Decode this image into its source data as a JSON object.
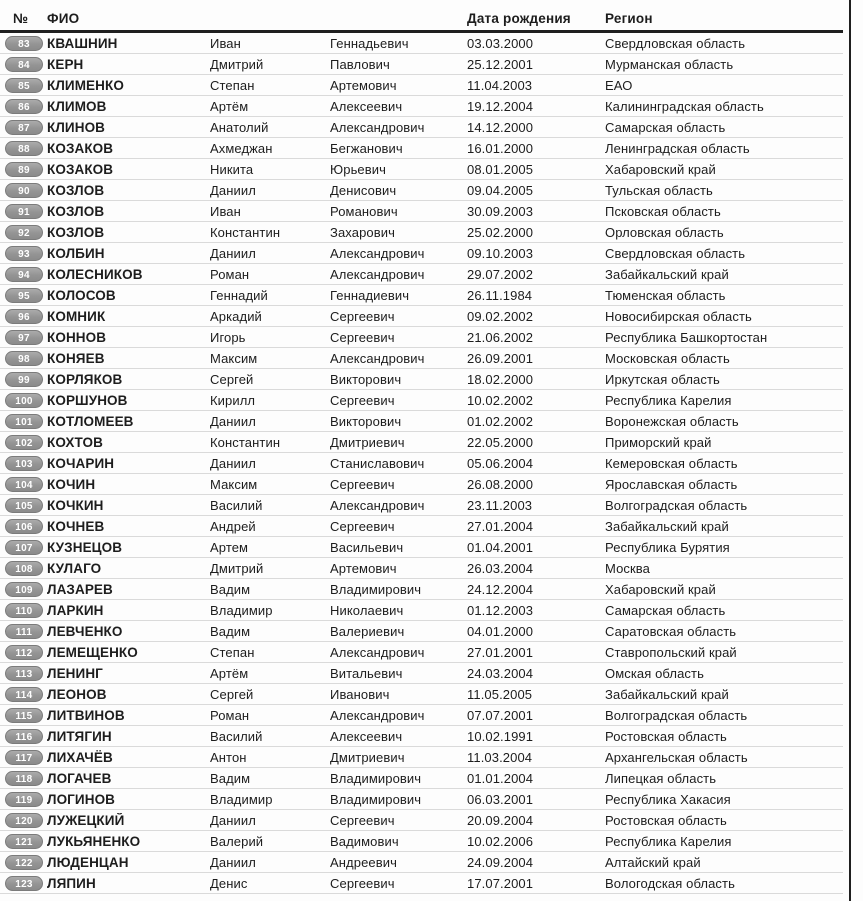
{
  "colors": {
    "page_bg": "#fdfdfd",
    "text": "#1d1d1d",
    "header_rule": "#1f1f1f",
    "row_divider": "#dadada",
    "badge_bg": "#949494",
    "badge_border": "#7b7b7b",
    "badge_text": "#ffffff"
  },
  "table": {
    "headers": {
      "num": "№",
      "fio": "ФИО",
      "dob": "Дата рождения",
      "region": "Регион"
    },
    "rows": [
      {
        "num": "83",
        "surname": "КВАШНИН",
        "first_name": "Иван",
        "patronymic": "Геннадьевич",
        "dob": "03.03.2000",
        "region": "Свердловская область"
      },
      {
        "num": "84",
        "surname": "КЕРН",
        "first_name": "Дмитрий",
        "patronymic": "Павлович",
        "dob": "25.12.2001",
        "region": "Мурманская область"
      },
      {
        "num": "85",
        "surname": "КЛИМЕНКО",
        "first_name": "Степан",
        "patronymic": "Артемович",
        "dob": "11.04.2003",
        "region": "ЕАО"
      },
      {
        "num": "86",
        "surname": "КЛИМОВ",
        "first_name": "Артём",
        "patronymic": "Алексеевич",
        "dob": "19.12.2004",
        "region": "Калининградская область"
      },
      {
        "num": "87",
        "surname": "КЛИНОВ",
        "first_name": "Анатолий",
        "patronymic": "Александрович",
        "dob": "14.12.2000",
        "region": "Самарская область"
      },
      {
        "num": "88",
        "surname": "КОЗАКОВ",
        "first_name": "Ахмеджан",
        "patronymic": "Бегжанович",
        "dob": "16.01.2000",
        "region": "Ленинградская область"
      },
      {
        "num": "89",
        "surname": "КОЗАКОВ",
        "first_name": "Никита",
        "patronymic": "Юрьевич",
        "dob": "08.01.2005",
        "region": "Хабаровский край"
      },
      {
        "num": "90",
        "surname": "КОЗЛОВ",
        "first_name": "Даниил",
        "patronymic": "Денисович",
        "dob": "09.04.2005",
        "region": "Тульская область"
      },
      {
        "num": "91",
        "surname": "КОЗЛОВ",
        "first_name": "Иван",
        "patronymic": "Романович",
        "dob": "30.09.2003",
        "region": "Псковская область"
      },
      {
        "num": "92",
        "surname": "КОЗЛОВ",
        "first_name": "Константин",
        "patronymic": "Захарович",
        "dob": "25.02.2000",
        "region": "Орловская область"
      },
      {
        "num": "93",
        "surname": "КОЛБИН",
        "first_name": "Даниил",
        "patronymic": "Александрович",
        "dob": "09.10.2003",
        "region": "Свердловская область"
      },
      {
        "num": "94",
        "surname": "КОЛЕСНИКОВ",
        "first_name": "Роман",
        "patronymic": "Александрович",
        "dob": "29.07.2002",
        "region": "Забайкальский край"
      },
      {
        "num": "95",
        "surname": "КОЛОСОВ",
        "first_name": "Геннадий",
        "patronymic": "Геннадиевич",
        "dob": "26.11.1984",
        "region": "Тюменская область"
      },
      {
        "num": "96",
        "surname": "КОМНИК",
        "first_name": "Аркадий",
        "patronymic": "Сергеевич",
        "dob": "09.02.2002",
        "region": "Новосибирская область"
      },
      {
        "num": "97",
        "surname": "КОННОВ",
        "first_name": "Игорь",
        "patronymic": "Сергеевич",
        "dob": "21.06.2002",
        "region": "Республика Башкортостан"
      },
      {
        "num": "98",
        "surname": "КОНЯЕВ",
        "first_name": "Максим",
        "patronymic": "Александрович",
        "dob": "26.09.2001",
        "region": "Московская область"
      },
      {
        "num": "99",
        "surname": "КОРЛЯКОВ",
        "first_name": "Сергей",
        "patronymic": "Викторович",
        "dob": "18.02.2000",
        "region": "Иркутская область"
      },
      {
        "num": "100",
        "surname": "КОРШУНОВ",
        "first_name": "Кирилл",
        "patronymic": "Сергеевич",
        "dob": "10.02.2002",
        "region": "Республика Карелия"
      },
      {
        "num": "101",
        "surname": "КОТЛОМЕЕВ",
        "first_name": "Даниил",
        "patronymic": "Викторович",
        "dob": "01.02.2002",
        "region": "Воронежская область"
      },
      {
        "num": "102",
        "surname": "КОХТОВ",
        "first_name": "Константин",
        "patronymic": "Дмитриевич",
        "dob": "22.05.2000",
        "region": "Приморский край"
      },
      {
        "num": "103",
        "surname": "КОЧАРИН",
        "first_name": "Даниил",
        "patronymic": "Станиславович",
        "dob": "05.06.2004",
        "region": "Кемеровская область"
      },
      {
        "num": "104",
        "surname": "КОЧИН",
        "first_name": "Максим",
        "patronymic": "Сергеевич",
        "dob": "26.08.2000",
        "region": "Ярославская область"
      },
      {
        "num": "105",
        "surname": "КОЧКИН",
        "first_name": "Василий",
        "patronymic": "Александрович",
        "dob": "23.11.2003",
        "region": "Волгоградская область"
      },
      {
        "num": "106",
        "surname": "КОЧНЕВ",
        "first_name": "Андрей",
        "patronymic": "Сергеевич",
        "dob": "27.01.2004",
        "region": "Забайкальский край"
      },
      {
        "num": "107",
        "surname": "КУЗНЕЦОВ",
        "first_name": "Артем",
        "patronymic": "Васильевич",
        "dob": "01.04.2001",
        "region": "Республика Бурятия"
      },
      {
        "num": "108",
        "surname": "КУЛАГО",
        "first_name": "Дмитрий",
        "patronymic": "Артемович",
        "dob": "26.03.2004",
        "region": "Москва"
      },
      {
        "num": "109",
        "surname": "ЛАЗАРЕВ",
        "first_name": "Вадим",
        "patronymic": "Владимирович",
        "dob": "24.12.2004",
        "region": "Хабаровский край"
      },
      {
        "num": "110",
        "surname": "ЛАРКИН",
        "first_name": "Владимир",
        "patronymic": "Николаевич",
        "dob": "01.12.2003",
        "region": "Самарская область"
      },
      {
        "num": "111",
        "surname": "ЛЕВЧЕНКО",
        "first_name": "Вадим",
        "patronymic": "Валериевич",
        "dob": "04.01.2000",
        "region": "Саратовская область"
      },
      {
        "num": "112",
        "surname": "ЛЕМЕЩЕНКО",
        "first_name": "Степан",
        "patronymic": "Александрович",
        "dob": "27.01.2001",
        "region": "Ставропольский край"
      },
      {
        "num": "113",
        "surname": "ЛЕНИНГ",
        "first_name": "Артём",
        "patronymic": "Витальевич",
        "dob": "24.03.2004",
        "region": "Омская область"
      },
      {
        "num": "114",
        "surname": "ЛЕОНОВ",
        "first_name": "Сергей",
        "patronymic": "Иванович",
        "dob": "11.05.2005",
        "region": "Забайкальский край"
      },
      {
        "num": "115",
        "surname": "ЛИТВИНОВ",
        "first_name": "Роман",
        "patronymic": "Александрович",
        "dob": "07.07.2001",
        "region": "Волгоградская область"
      },
      {
        "num": "116",
        "surname": "ЛИТЯГИН",
        "first_name": "Василий",
        "patronymic": "Алексеевич",
        "dob": "10.02.1991",
        "region": "Ростовская область"
      },
      {
        "num": "117",
        "surname": "ЛИХАЧЁВ",
        "first_name": "Антон",
        "patronymic": "Дмитриевич",
        "dob": "11.03.2004",
        "region": "Архангельская область"
      },
      {
        "num": "118",
        "surname": "ЛОГАЧЕВ",
        "first_name": "Вадим",
        "patronymic": "Владимирович",
        "dob": "01.01.2004",
        "region": "Липецкая область"
      },
      {
        "num": "119",
        "surname": "ЛОГИНОВ",
        "first_name": "Владимир",
        "patronymic": "Владимирович",
        "dob": "06.03.2001",
        "region": "Республика Хакасия"
      },
      {
        "num": "120",
        "surname": "ЛУЖЕЦКИЙ",
        "first_name": "Даниил",
        "patronymic": "Сергеевич",
        "dob": "20.09.2004",
        "region": "Ростовская область"
      },
      {
        "num": "121",
        "surname": "ЛУКЬЯНЕНКО",
        "first_name": "Валерий",
        "patronymic": "Вадимович",
        "dob": "10.02.2006",
        "region": "Республика Карелия"
      },
      {
        "num": "122",
        "surname": "ЛЮДЕНЦАН",
        "first_name": "Даниил",
        "patronymic": "Андреевич",
        "dob": "24.09.2004",
        "region": "Алтайский край"
      },
      {
        "num": "123",
        "surname": "ЛЯПИН",
        "first_name": "Денис",
        "patronymic": "Сергеевич",
        "dob": "17.07.2001",
        "region": "Вологодская область"
      }
    ]
  }
}
